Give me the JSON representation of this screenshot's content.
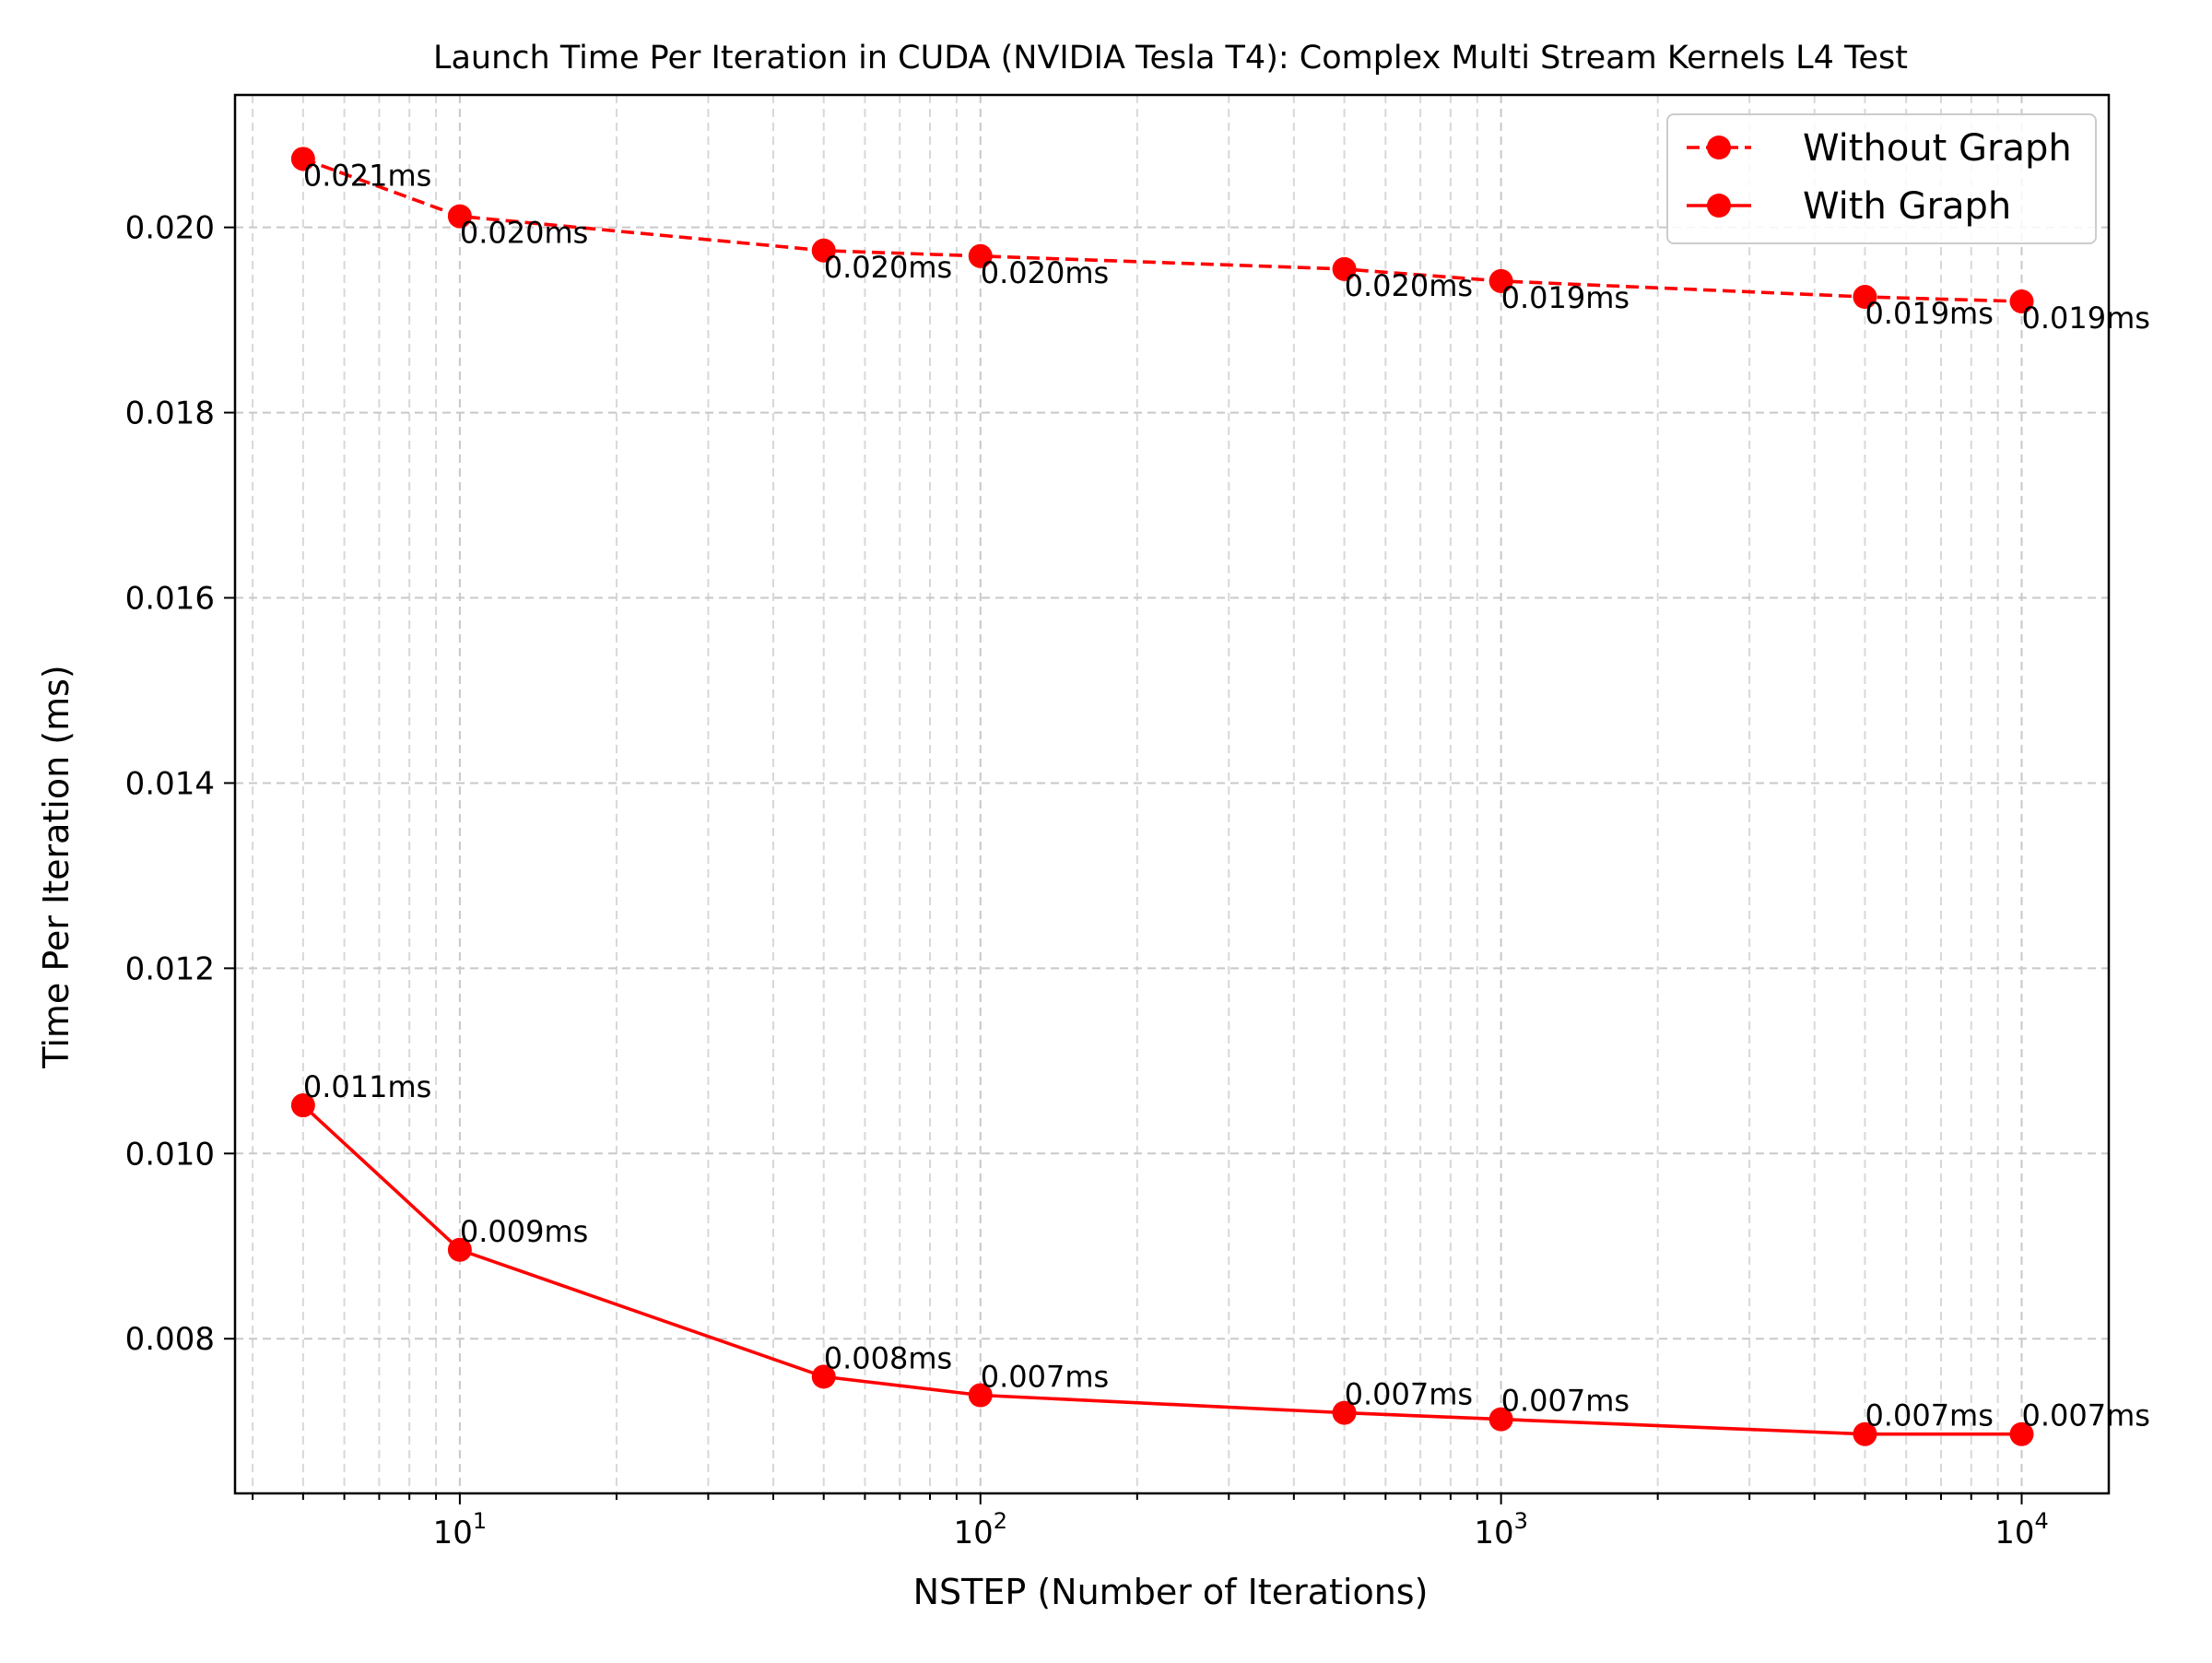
{
  "chart_data": {
    "type": "line",
    "title": "Launch Time Per Iteration in CUDA (NVIDIA Tesla T4): Complex Multi Stream Kernels L4 Test",
    "xlabel": "NSTEP (Number of Iterations)",
    "ylabel": "Time Per Iteration (ms)",
    "xscale": "log",
    "xlim": [
      3.7,
      14700
    ],
    "ylim": [
      0.00633,
      0.02143
    ],
    "x_ticks": [
      {
        "base": "10",
        "exp": "1"
      },
      {
        "base": "10",
        "exp": "2"
      },
      {
        "base": "10",
        "exp": "3"
      },
      {
        "base": "10",
        "exp": "4"
      }
    ],
    "y_ticks": [
      "0.008",
      "0.010",
      "0.012",
      "0.014",
      "0.016",
      "0.018",
      "0.020"
    ],
    "y_tick_values": [
      0.008,
      0.01,
      0.012,
      0.014,
      0.016,
      0.018,
      0.02
    ],
    "grid": true,
    "legend_position": "top-right",
    "x": [
      5,
      10,
      50,
      100,
      500,
      1000,
      5000,
      10000
    ],
    "series": [
      {
        "name": "Without Graph",
        "style": "dashed",
        "color": "#ff0000",
        "values": [
          0.02074,
          0.02012,
          0.01975,
          0.01969,
          0.01955,
          0.01942,
          0.01925,
          0.0192
        ],
        "labels": [
          "0.021ms",
          "0.020ms",
          "0.020ms",
          "0.020ms",
          "0.020ms",
          "0.019ms",
          "0.019ms",
          "0.019ms"
        ]
      },
      {
        "name": "With Graph",
        "style": "solid",
        "color": "#ff0000",
        "values": [
          0.01052,
          0.00896,
          0.00759,
          0.00739,
          0.0072,
          0.00713,
          0.00697,
          0.00697
        ],
        "labels": [
          "0.011ms",
          "0.009ms",
          "0.008ms",
          "0.007ms",
          "0.007ms",
          "0.007ms",
          "0.007ms",
          "0.007ms"
        ]
      }
    ]
  }
}
